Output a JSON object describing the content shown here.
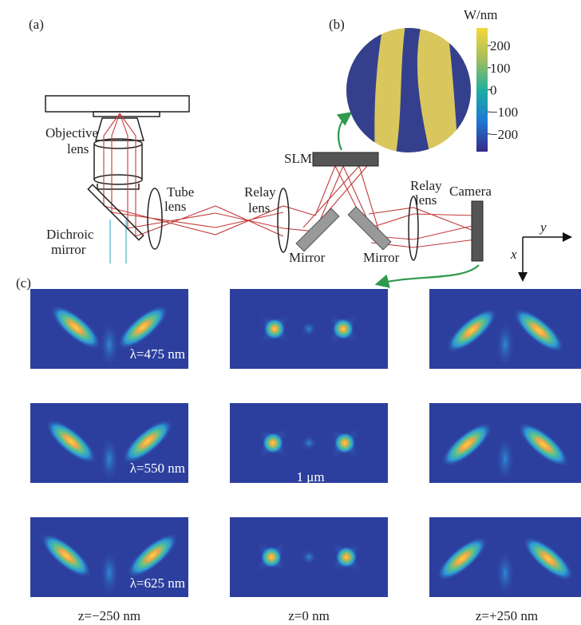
{
  "panel_labels": [
    "(a)",
    "(b)",
    "(c)"
  ],
  "setup": {
    "objective_lens": [
      "Objective",
      "lens"
    ],
    "tube_lens": [
      "Tube",
      "lens"
    ],
    "relay_lens_1": [
      "Relay",
      "lens"
    ],
    "relay_lens_2": [
      "Relay",
      "lens"
    ],
    "camera": "Camera",
    "slm": "SLM",
    "mirror_1": "Mirror",
    "mirror_2": "Mirror",
    "dichroic_mirror": [
      "Dichroic",
      "mirror"
    ]
  },
  "colorbar": {
    "unit": "W/nm",
    "lim": [
      -280,
      280
    ],
    "ticks": [
      200,
      100,
      0,
      {
        "value": -100,
        "label": "−100"
      },
      {
        "value": -200,
        "label": "−200"
      }
    ]
  },
  "axes": {
    "x": "x",
    "y": "y"
  },
  "panel_c": {
    "wavelength_labels": [
      "λ=475 nm",
      "λ=550 nm",
      "λ=625 nm"
    ],
    "scale_bar": "1 μm",
    "z_labels": [
      "z=−250 nm",
      "z=0 nm",
      "z=+250 nm"
    ]
  }
}
